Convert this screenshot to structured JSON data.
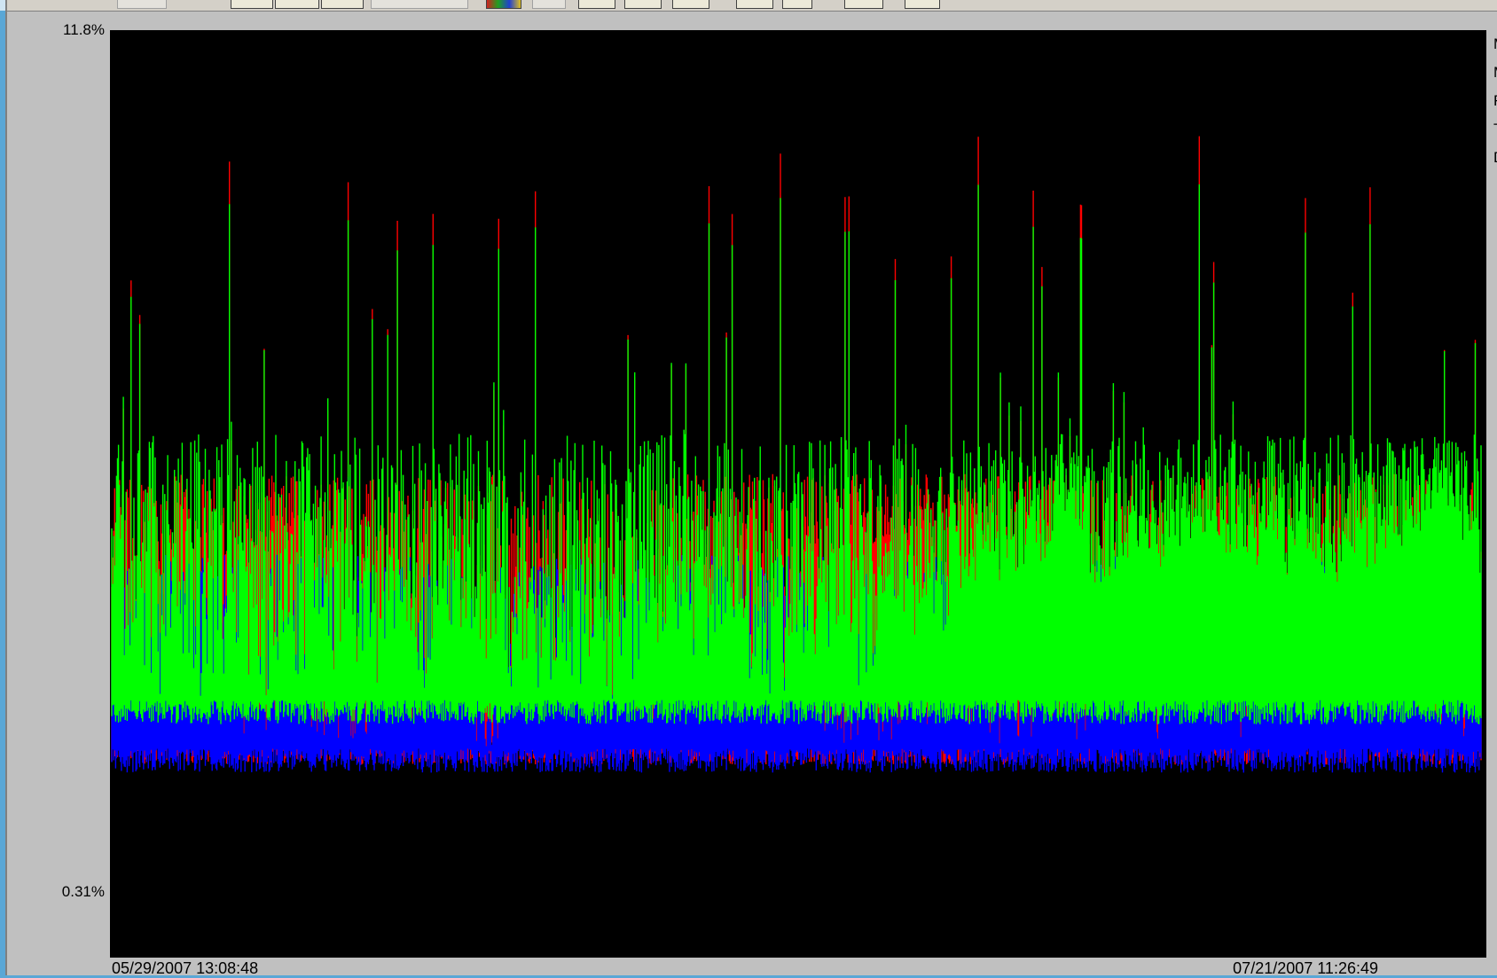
{
  "chart_data": {
    "type": "area",
    "ylim_labels": {
      "top": "11.8%",
      "bottom": "0.31%"
    },
    "ylim": [
      0.31,
      11.8
    ],
    "x_range_labels": {
      "start": "05/29/2007 13:08:48",
      "end": "07/21/2007 11:26:49"
    },
    "legend_partial": [
      "M",
      "M",
      "F",
      "T",
      "D"
    ],
    "series": [
      {
        "color": "#ff0000",
        "typical_range": [
          3.0,
          5.5
        ],
        "max": 10.5
      },
      {
        "color": "#00ff00",
        "typical_range": [
          3.5,
          6.0
        ],
        "max": 9.9
      },
      {
        "color": "#0000ff",
        "typical_range": [
          2.9,
          4.5
        ],
        "max": 6.5
      }
    ],
    "background": "#000000",
    "grid": false
  }
}
